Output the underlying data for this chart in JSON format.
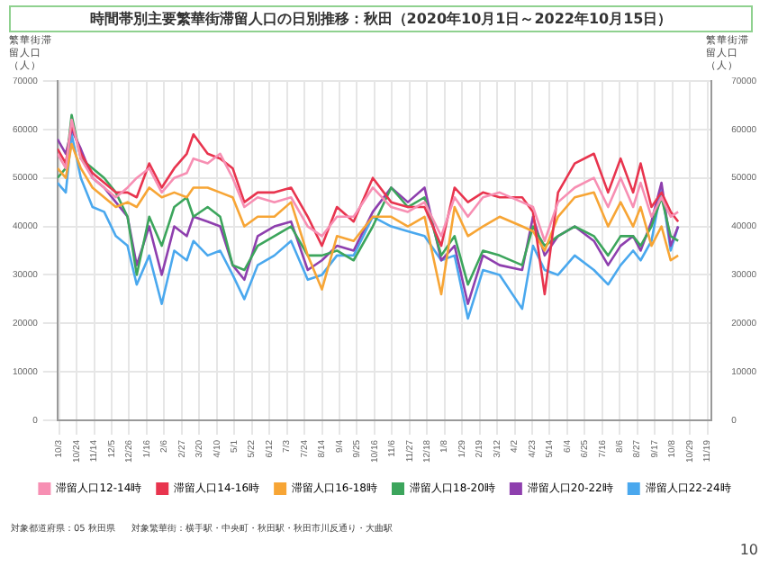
{
  "chart_data": {
    "type": "line",
    "title": "時間帯別主要繁華街滞留人口の日別推移：秋田（2020年10月1日～2022年10月15日）",
    "ylabel": "繁華街滞留人口（人）",
    "y2label": "繁華街滞留人口（人）",
    "x": [
      "2020-10-01",
      "2020-10-11",
      "2020-10-18",
      "2020-10-29",
      "2020-11-12",
      "2020-11-26",
      "2020-12-10",
      "2020-12-24",
      "2021-01-04",
      "2021-01-19",
      "2021-02-03",
      "2021-02-18",
      "2021-03-05",
      "2021-03-13",
      "2021-03-30",
      "2021-04-14",
      "2021-04-29",
      "2021-05-13",
      "2021-05-29",
      "2021-06-18",
      "2021-07-08",
      "2021-07-28",
      "2021-08-14",
      "2021-09-01",
      "2021-09-21",
      "2021-10-14",
      "2021-11-05",
      "2021-11-25",
      "2021-12-15",
      "2022-01-04",
      "2022-01-20",
      "2022-02-05",
      "2022-02-23",
      "2022-03-15",
      "2022-04-11",
      "2022-04-24",
      "2022-05-08",
      "2022-05-24",
      "2022-06-13",
      "2022-07-06",
      "2022-07-23",
      "2022-08-07",
      "2022-08-22",
      "2022-08-31",
      "2022-09-13",
      "2022-09-25",
      "2022-10-06",
      "2022-10-15"
    ],
    "series": [
      {
        "name": "滞留人口12-14時",
        "color": "#f78fb3",
        "values": [
          55000,
          52000,
          62000,
          54000,
          50000,
          48000,
          46000,
          48000,
          50000,
          52000,
          47000,
          50000,
          51000,
          54000,
          53000,
          55000,
          50000,
          44000,
          46000,
          45000,
          46000,
          40000,
          38000,
          42000,
          42000,
          48000,
          44000,
          43000,
          45000,
          38000,
          46000,
          42000,
          46000,
          47000,
          45000,
          44000,
          37000,
          45000,
          48000,
          50000,
          44000,
          50000,
          44000,
          49000,
          42000,
          46000,
          42000,
          43000
        ]
      },
      {
        "name": "滞留人口14-16時",
        "color": "#e8344e",
        "values": [
          56000,
          53000,
          61000,
          55000,
          51000,
          49000,
          47000,
          47000,
          46000,
          53000,
          48000,
          52000,
          55000,
          59000,
          55000,
          54000,
          52000,
          45000,
          47000,
          47000,
          48000,
          42000,
          36000,
          44000,
          41000,
          50000,
          45000,
          44000,
          44000,
          36000,
          48000,
          45000,
          47000,
          46000,
          46000,
          43000,
          26000,
          47000,
          53000,
          55000,
          47000,
          54000,
          47000,
          53000,
          44000,
          47000,
          43000,
          41000
        ]
      },
      {
        "name": "滞留人口16-18時",
        "color": "#f7a535",
        "values": [
          52000,
          50000,
          57000,
          52000,
          48000,
          46000,
          44000,
          45000,
          44000,
          48000,
          46000,
          47000,
          46000,
          48000,
          48000,
          47000,
          46000,
          40000,
          42000,
          42000,
          45000,
          34000,
          27000,
          38000,
          37000,
          42000,
          42000,
          40000,
          42000,
          26000,
          44000,
          38000,
          40000,
          42000,
          40000,
          39000,
          35000,
          42000,
          46000,
          47000,
          40000,
          45000,
          40000,
          44000,
          36000,
          40000,
          33000,
          34000
        ]
      },
      {
        "name": "滞留人口18-20時",
        "color": "#3ca55c",
        "values": [
          50000,
          52000,
          63000,
          54000,
          52000,
          50000,
          47000,
          42000,
          30000,
          42000,
          36000,
          44000,
          46000,
          42000,
          44000,
          42000,
          32000,
          31000,
          36000,
          38000,
          40000,
          34000,
          34000,
          35000,
          33000,
          40000,
          48000,
          44000,
          46000,
          34000,
          38000,
          28000,
          35000,
          34000,
          32000,
          40000,
          36000,
          38000,
          40000,
          38000,
          34000,
          38000,
          38000,
          36000,
          40000,
          46000,
          38000,
          37000
        ]
      },
      {
        "name": "滞留人口20-22時",
        "color": "#8e3fae",
        "values": [
          58000,
          55000,
          60000,
          56000,
          50000,
          48000,
          45000,
          42000,
          32000,
          40000,
          30000,
          40000,
          38000,
          42000,
          41000,
          40000,
          32000,
          29000,
          38000,
          40000,
          41000,
          31000,
          33000,
          36000,
          35000,
          43000,
          48000,
          45000,
          48000,
          33000,
          36000,
          24000,
          34000,
          32000,
          31000,
          42000,
          34000,
          38000,
          40000,
          37000,
          32000,
          36000,
          38000,
          35000,
          41000,
          49000,
          36000,
          40000
        ]
      },
      {
        "name": "滞留人口22-24時",
        "color": "#4aa8ee",
        "values": [
          49000,
          47000,
          59000,
          50000,
          44000,
          43000,
          38000,
          36000,
          28000,
          34000,
          24000,
          35000,
          33000,
          37000,
          34000,
          35000,
          30000,
          25000,
          32000,
          34000,
          37000,
          29000,
          30000,
          34000,
          34000,
          42000,
          40000,
          39000,
          38000,
          33000,
          34000,
          21000,
          31000,
          30000,
          23000,
          36000,
          31000,
          30000,
          34000,
          31000,
          28000,
          32000,
          35000,
          33000,
          37000,
          48000,
          35000,
          40000
        ]
      }
    ],
    "xlim": [
      "2020-10-01",
      "2022-11-24"
    ],
    "xticks": [
      {
        "value": "2020-10-03",
        "label": "10/3"
      },
      {
        "value": "2020-10-24",
        "label": "10/24"
      },
      {
        "value": "2020-11-14",
        "label": "11/14"
      },
      {
        "value": "2020-12-05",
        "label": "12/5"
      },
      {
        "value": "2020-12-26",
        "label": "12/26"
      },
      {
        "value": "2021-01-16",
        "label": "1/16"
      },
      {
        "value": "2021-02-06",
        "label": "2/6"
      },
      {
        "value": "2021-02-27",
        "label": "2/27"
      },
      {
        "value": "2021-03-20",
        "label": "3/20"
      },
      {
        "value": "2021-04-10",
        "label": "4/10"
      },
      {
        "value": "2021-05-01",
        "label": "5/1"
      },
      {
        "value": "2021-05-22",
        "label": "5/22"
      },
      {
        "value": "2021-06-12",
        "label": "6/12"
      },
      {
        "value": "2021-07-03",
        "label": "7/3"
      },
      {
        "value": "2021-07-24",
        "label": "7/24"
      },
      {
        "value": "2021-08-14",
        "label": "8/14"
      },
      {
        "value": "2021-09-04",
        "label": "9/4"
      },
      {
        "value": "2021-09-25",
        "label": "9/25"
      },
      {
        "value": "2021-10-16",
        "label": "10/16"
      },
      {
        "value": "2021-11-06",
        "label": "11/6"
      },
      {
        "value": "2021-11-27",
        "label": "11/27"
      },
      {
        "value": "2021-12-18",
        "label": "12/18"
      },
      {
        "value": "2022-01-08",
        "label": "1/8"
      },
      {
        "value": "2022-01-29",
        "label": "1/29"
      },
      {
        "value": "2022-02-19",
        "label": "2/19"
      },
      {
        "value": "2022-03-12",
        "label": "3/12"
      },
      {
        "value": "2022-04-02",
        "label": "4/2"
      },
      {
        "value": "2022-04-23",
        "label": "4/23"
      },
      {
        "value": "2022-05-14",
        "label": "5/14"
      },
      {
        "value": "2022-06-04",
        "label": "6/4"
      },
      {
        "value": "2022-06-25",
        "label": "6/25"
      },
      {
        "value": "2022-07-16",
        "label": "7/16"
      },
      {
        "value": "2022-08-06",
        "label": "8/6"
      },
      {
        "value": "2022-08-27",
        "label": "8/27"
      },
      {
        "value": "2022-09-17",
        "label": "9/17"
      },
      {
        "value": "2022-10-08",
        "label": "10/8"
      },
      {
        "value": "2022-10-29",
        "label": "10/29"
      },
      {
        "value": "2022-11-19",
        "label": "11/19"
      }
    ],
    "ylim": [
      0,
      70000
    ],
    "yticks": [
      0,
      10000,
      20000,
      30000,
      40000,
      50000,
      60000,
      70000
    ],
    "y2lim": [
      0,
      70000
    ],
    "y2ticks": [
      0,
      10000,
      20000,
      30000,
      40000,
      50000,
      60000,
      70000
    ],
    "grid": true,
    "legend": "bottom",
    "marker": "none",
    "line_style": "solid",
    "annotations": [
      "対象都道府県：05 秋田県",
      "対象繁華街：横手駅・中央町・秋田駅・秋田市川反通り・大曲駅",
      "10"
    ]
  }
}
